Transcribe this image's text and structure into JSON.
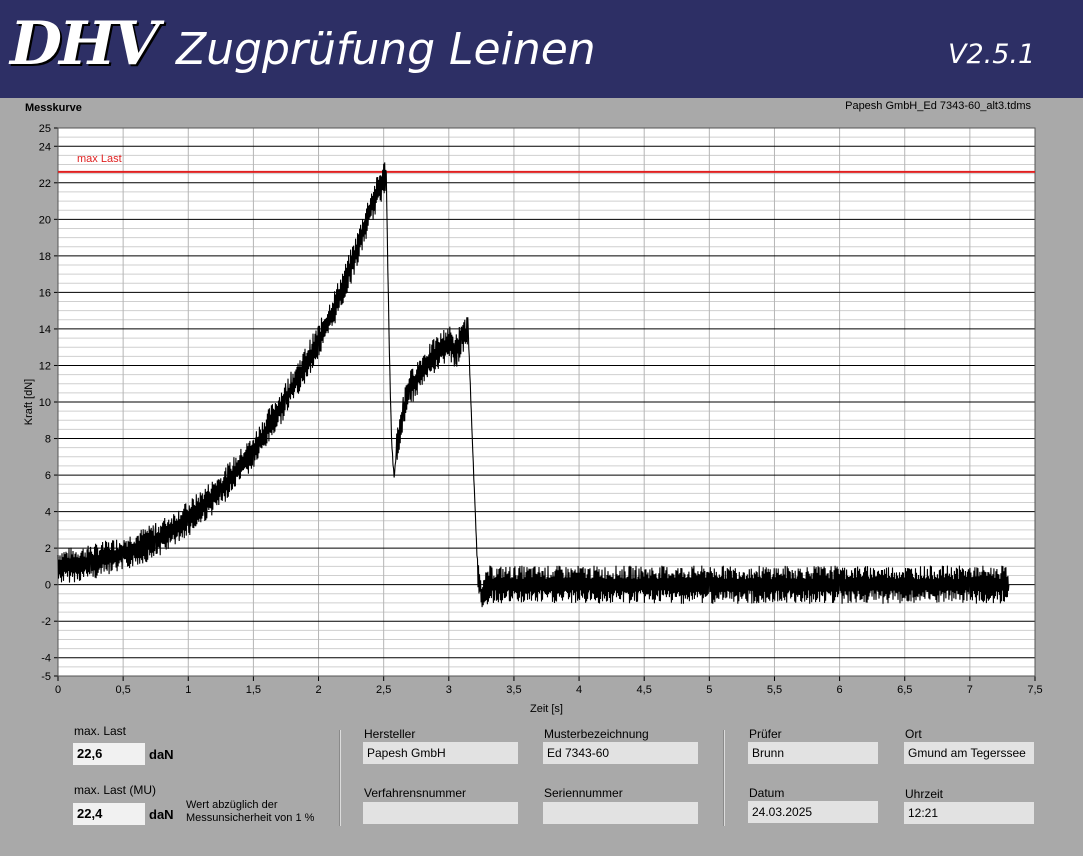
{
  "header": {
    "logo": "DHV",
    "title": "Zugprüfung Leinen",
    "version": "V2.5.1"
  },
  "chart_panel": {
    "title": "Messkurve",
    "file": "Papesh GmbH_Ed 7343-60_alt3.tdms"
  },
  "chart_data": {
    "type": "line",
    "title": "Messkurve",
    "xlabel": "Zeit [s]",
    "ylabel": "Kraft [dN]",
    "xlim": [
      0,
      7.5
    ],
    "ylim": [
      -5,
      25
    ],
    "xticks": [
      "0",
      "0,5",
      "1",
      "1,5",
      "2",
      "2,5",
      "3",
      "3,5",
      "4",
      "4,5",
      "5",
      "5,5",
      "6",
      "6,5",
      "7",
      "7,5"
    ],
    "yticks": [
      "-5",
      "-4",
      "-2",
      "0",
      "2",
      "4",
      "6",
      "8",
      "10",
      "12",
      "14",
      "16",
      "18",
      "20",
      "22",
      "24",
      "25"
    ],
    "grid": true,
    "annotations": [
      {
        "text": "max Last",
        "y": 22.6,
        "color": "#e02020"
      }
    ],
    "series": [
      {
        "color": "#000000",
        "x": [
          0,
          0.25,
          0.5,
          0.75,
          1.0,
          1.25,
          1.5,
          1.75,
          2.0,
          2.1,
          2.2,
          2.3,
          2.4,
          2.5,
          2.52,
          2.54,
          2.56,
          2.58,
          2.6,
          2.65,
          2.7,
          2.8,
          2.9,
          3.0,
          3.05,
          3.1,
          3.15,
          3.18,
          3.22,
          3.26,
          3.3,
          4.0,
          5.0,
          6.0,
          7.0,
          7.3
        ],
        "y": [
          1.0,
          1.2,
          1.7,
          2.4,
          3.6,
          5.2,
          7.3,
          10.2,
          13.3,
          14.8,
          16.5,
          18.4,
          20.6,
          22.2,
          22.4,
          14.0,
          8.0,
          5.8,
          7.5,
          9.5,
          10.7,
          11.8,
          12.6,
          13.3,
          12.6,
          13.6,
          13.8,
          8.0,
          1.0,
          -0.9,
          0.0,
          0.0,
          0.0,
          0.0,
          0.0,
          0.0
        ]
      }
    ]
  },
  "fields": {
    "max_last": {
      "label": "max. Last",
      "value": "22,6",
      "unit": "daN"
    },
    "max_last_mu": {
      "label": "max. Last (MU)",
      "value": "22,4",
      "unit": "daN",
      "note_line1": "Wert abzüglich der",
      "note_line2": "Messunsicherheit von 1 %"
    },
    "hersteller": {
      "label": "Hersteller",
      "value": "Papesh GmbH"
    },
    "musterbezeichnung": {
      "label": "Musterbezeichnung",
      "value": "Ed 7343-60"
    },
    "verfahrensnummer": {
      "label": "Verfahrensnummer",
      "value": ""
    },
    "seriennummer": {
      "label": "Seriennummer",
      "value": ""
    },
    "pruefer": {
      "label": "Prüfer",
      "value": "Brunn"
    },
    "ort": {
      "label": "Ort",
      "value": "Gmund am Tegerssee"
    },
    "datum": {
      "label": "Datum",
      "value": "24.03.2025"
    },
    "uhrzeit": {
      "label": "Uhrzeit",
      "value": "12:21"
    }
  }
}
